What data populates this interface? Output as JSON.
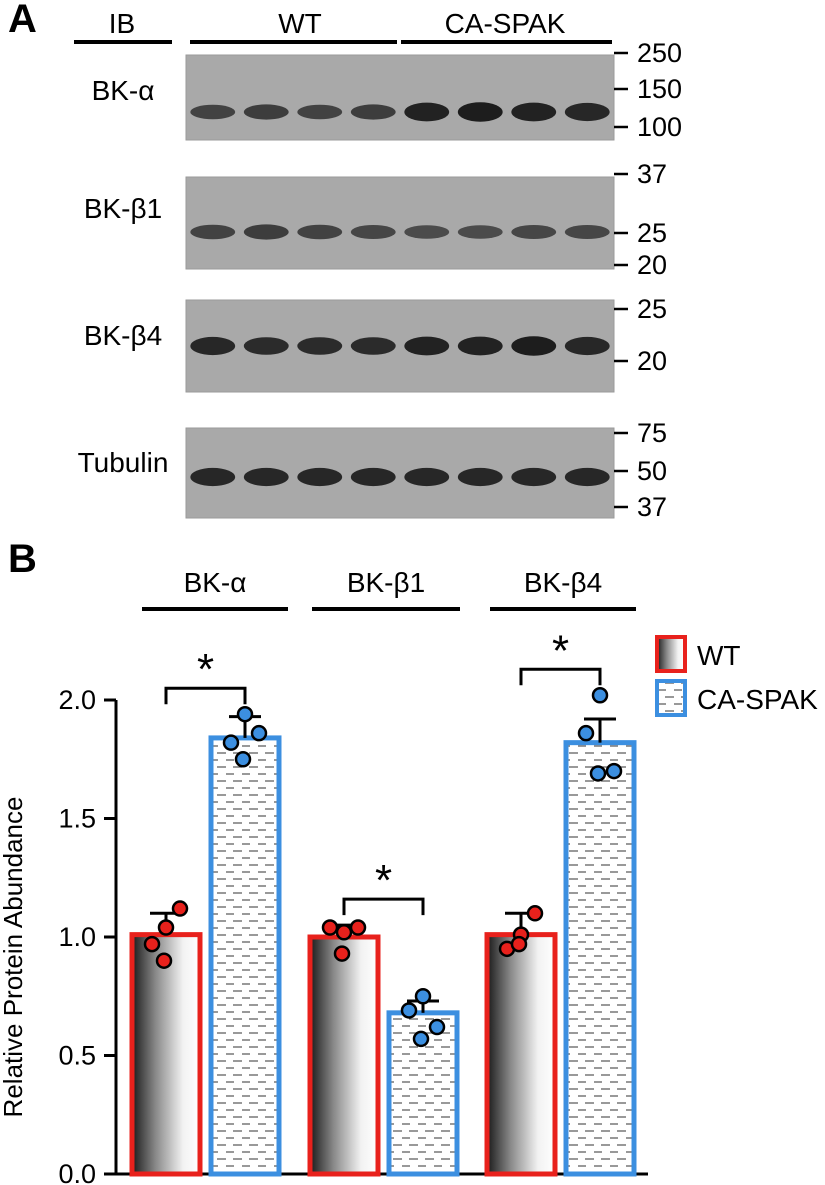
{
  "panel_a": {
    "letter": "A",
    "ib_label": "IB",
    "group_wt": "WT",
    "group_ca": "CA-SPAK",
    "blots": [
      {
        "label": "BK-α",
        "markers": [
          "250",
          "150",
          "100"
        ],
        "band_intensity": [
          0.55,
          0.6,
          0.55,
          0.6,
          0.9,
          0.95,
          0.9,
          0.85
        ]
      },
      {
        "label": "BK-β1",
        "markers": [
          "37",
          "25",
          "20"
        ],
        "band_intensity": [
          0.55,
          0.6,
          0.55,
          0.5,
          0.45,
          0.45,
          0.5,
          0.5
        ]
      },
      {
        "label": "BK-β4",
        "markers": [
          "25",
          "20"
        ],
        "band_intensity": [
          0.85,
          0.8,
          0.8,
          0.8,
          0.9,
          0.9,
          0.95,
          0.85
        ]
      },
      {
        "label": "Tubulin",
        "markers": [
          "75",
          "50",
          "37"
        ],
        "band_intensity": [
          0.85,
          0.85,
          0.85,
          0.85,
          0.85,
          0.85,
          0.85,
          0.85
        ]
      }
    ]
  },
  "panel_b": {
    "letter": "B",
    "legend": [
      {
        "label": "WT",
        "color": "#e8211c"
      },
      {
        "label": "CA-SPAK",
        "color": "#3c8fe0"
      }
    ]
  },
  "chart_data": {
    "type": "bar",
    "categories": [
      "BK-α",
      "BK-β1",
      "BK-β4"
    ],
    "series": [
      {
        "name": "WT",
        "values": [
          1.01,
          1.0,
          1.01
        ],
        "sem": [
          0.09,
          0.05,
          0.09
        ],
        "points": [
          [
            0.97,
            1.04,
            1.12,
            0.9
          ],
          [
            1.04,
            1.02,
            1.04,
            0.93
          ],
          [
            0.95,
            1.01,
            1.1,
            0.97
          ]
        ]
      },
      {
        "name": "CA-SPAK",
        "values": [
          1.84,
          0.68,
          1.82
        ],
        "sem": [
          0.09,
          0.05,
          0.1
        ],
        "points": [
          [
            1.82,
            1.94,
            1.86,
            1.75
          ],
          [
            0.69,
            0.75,
            0.62,
            0.57
          ],
          [
            1.86,
            2.02,
            1.7,
            1.69
          ]
        ]
      }
    ],
    "significance": [
      "*",
      "*",
      "*"
    ],
    "ylabel": "Relative Protein Abundance",
    "ylim": [
      0.0,
      2.0
    ],
    "yticks": [
      "0.0",
      "0.5",
      "1.0",
      "1.5",
      "2.0"
    ],
    "colors": {
      "wt": "#e8211c",
      "ca": "#3c8fe0",
      "wt_point": "#e8211c",
      "ca_point": "#3c8fe0"
    },
    "legend_position": "top-right"
  }
}
